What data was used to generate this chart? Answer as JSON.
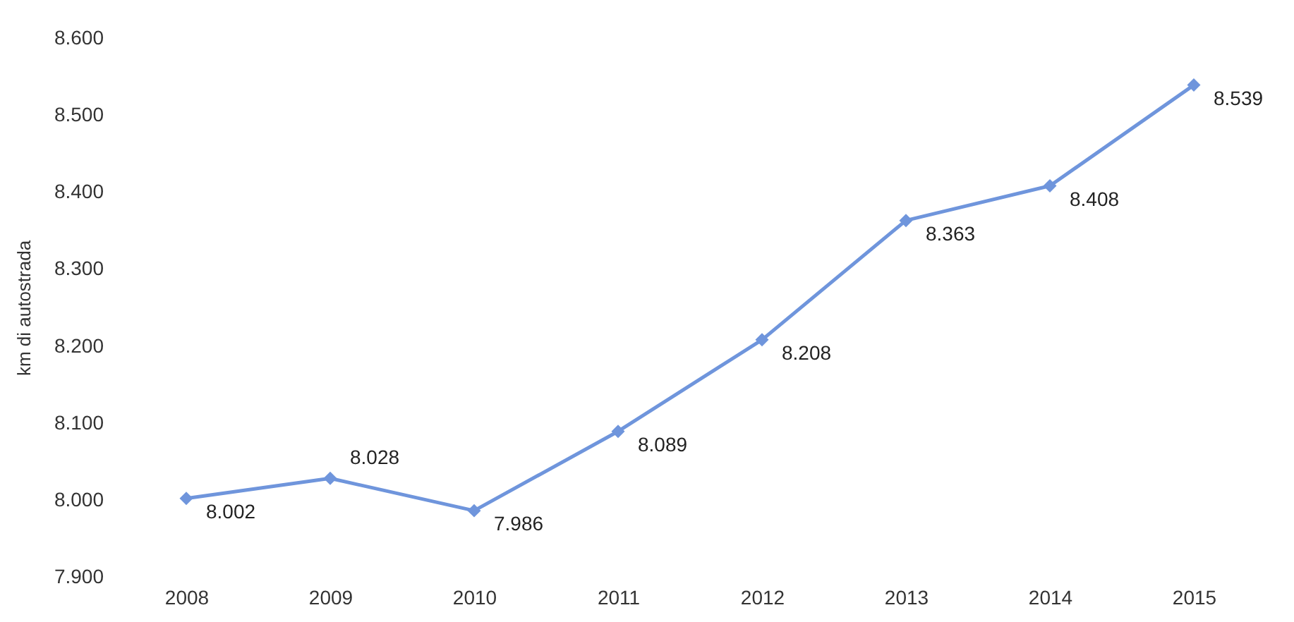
{
  "chart_data": {
    "type": "line",
    "ylabel": "km di autostrada",
    "categories": [
      "2008",
      "2009",
      "2010",
      "2011",
      "2012",
      "2013",
      "2014",
      "2015"
    ],
    "series": [
      {
        "color": "#6f95dc",
        "values": [
          8002,
          8028,
          7986,
          8089,
          8208,
          8363,
          8408,
          8539
        ],
        "value_labels": [
          "8.002",
          "8.028",
          "7.986",
          "8.089",
          "8.208",
          "8.363",
          "8.408",
          "8.539"
        ]
      }
    ],
    "ylim": [
      7900,
      8600
    ],
    "yticks": [
      {
        "value": 7900,
        "label": "7.900"
      },
      {
        "value": 8000,
        "label": "8.000"
      },
      {
        "value": 8100,
        "label": "8.100"
      },
      {
        "value": 8200,
        "label": "8.200"
      },
      {
        "value": 8300,
        "label": "8.300"
      },
      {
        "value": 8400,
        "label": "8.400"
      },
      {
        "value": 8500,
        "label": "8.500"
      },
      {
        "value": 8600,
        "label": "8.600"
      }
    ],
    "grid": false,
    "marker": "diamond",
    "line_style": "solid"
  }
}
